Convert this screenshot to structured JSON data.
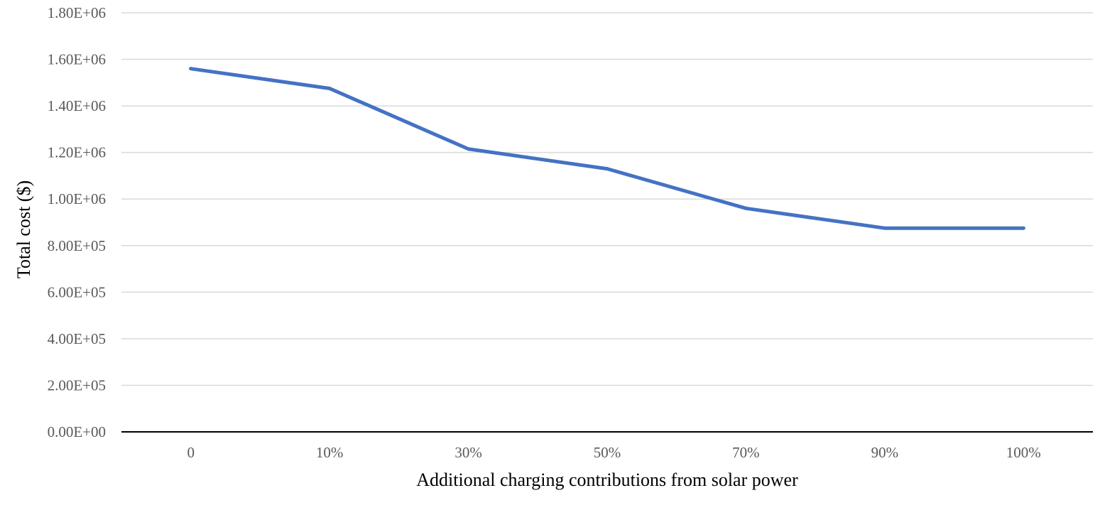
{
  "chart_data": {
    "type": "line",
    "title": "",
    "xlabel": "Additional charging contributions from solar power",
    "ylabel": "Total cost ($)",
    "categories": [
      "0",
      "10%",
      "30%",
      "50%",
      "70%",
      "90%",
      "100%"
    ],
    "series": [
      {
        "name": "Total cost",
        "color": "#4472c4",
        "values": [
          1560000,
          1475000,
          1215000,
          1130000,
          960000,
          875000,
          875000
        ]
      }
    ],
    "ylim": [
      0,
      1800000
    ],
    "yticks": [
      0,
      200000,
      400000,
      600000,
      800000,
      1000000,
      1200000,
      1400000,
      1600000,
      1800000
    ],
    "ytick_labels": [
      "0.00E+00",
      "2.00E+05",
      "4.00E+05",
      "6.00E+05",
      "8.00E+05",
      "1.00E+06",
      "1.20E+06",
      "1.40E+06",
      "1.60E+06",
      "1.80E+06"
    ],
    "grid": true,
    "legend": "none"
  }
}
